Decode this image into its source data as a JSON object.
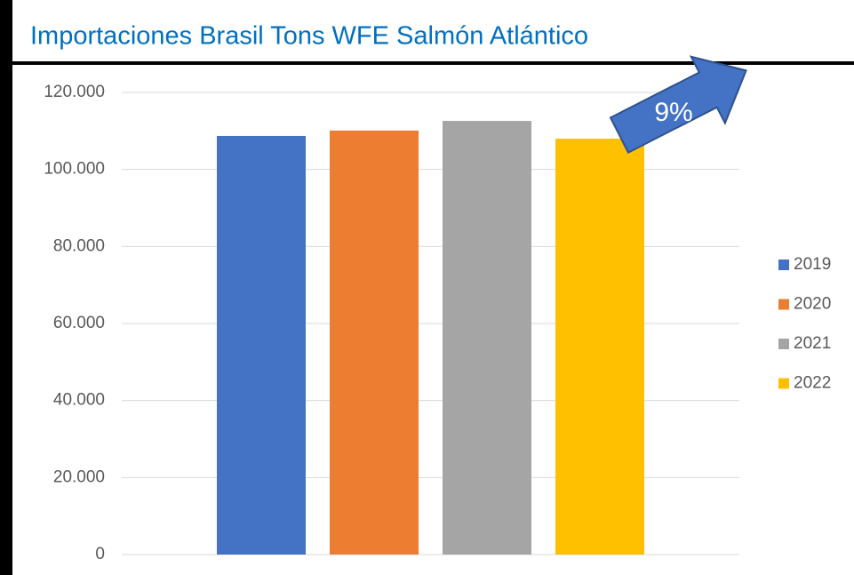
{
  "chart_data": {
    "type": "bar",
    "title": "Importaciones Brasil Tons WFE Salmón Atlántico",
    "annotation": "9%",
    "categories": [
      null
    ],
    "series": [
      {
        "name": "2019",
        "color": "#4472c4",
        "values": [
          108700
        ]
      },
      {
        "name": "2020",
        "color": "#ed7d31",
        "values": [
          110100
        ]
      },
      {
        "name": "2021",
        "color": "#a5a5a5",
        "values": [
          112600
        ]
      },
      {
        "name": "2022",
        "color": "#ffc000",
        "values": [
          108000
        ]
      }
    ],
    "ylim": [
      0,
      120000
    ],
    "yticks": [
      0,
      {
        "value": 20000,
        "label": "20.000"
      },
      {
        "value": 40000,
        "label": "40.000"
      },
      {
        "value": 60000,
        "label": "60.000"
      },
      {
        "value": 80000,
        "label": "80.000"
      },
      {
        "value": 100000,
        "label": "100.000"
      },
      {
        "value": 120000,
        "label": "120.000"
      }
    ],
    "grid": true,
    "legend": "right"
  }
}
